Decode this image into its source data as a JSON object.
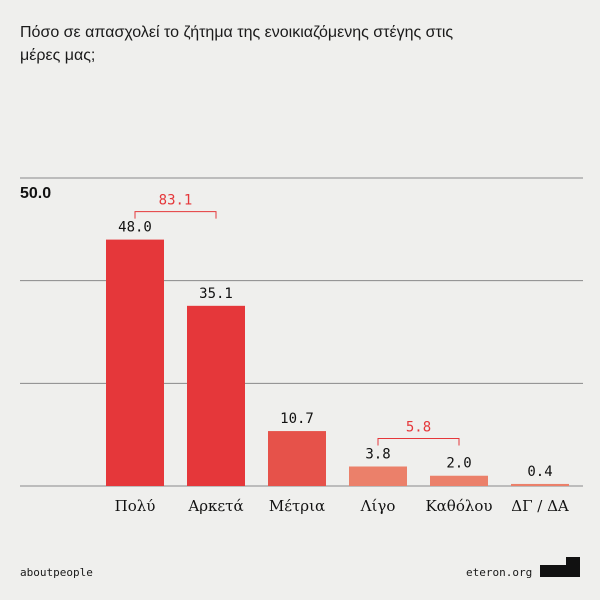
{
  "title": "Πόσο σε απασχολεί το ζήτημα της ενοικιαζόμενης στέγης στις μέρες μας;",
  "chart_data": {
    "type": "bar",
    "categories": [
      "Πολύ",
      "Αρκετά",
      "Μέτρια",
      "Λίγο",
      "Καθόλου",
      "ΔΓ / ΔΑ"
    ],
    "values": [
      48.0,
      35.1,
      10.7,
      3.8,
      2.0,
      0.4
    ],
    "value_labels": [
      "48.0",
      "35.1",
      "10.7",
      "3.8",
      "2.0",
      "0.4"
    ],
    "colors": [
      "#e5373a",
      "#e5373a",
      "#e6524a",
      "#eb806a",
      "#eb806a",
      "#eb806a"
    ],
    "ylim": [
      0,
      60
    ],
    "ytick_label": "50.0",
    "grid": true,
    "brackets": [
      {
        "from": 0,
        "to": 1,
        "label": "83.1"
      },
      {
        "from": 3,
        "to": 4,
        "label": "5.8"
      }
    ],
    "bracket_color": "#e5373a"
  },
  "footer": {
    "left": "aboutpeople",
    "right": "eteron.org",
    "logo_icon": "eteron-logo-icon"
  }
}
